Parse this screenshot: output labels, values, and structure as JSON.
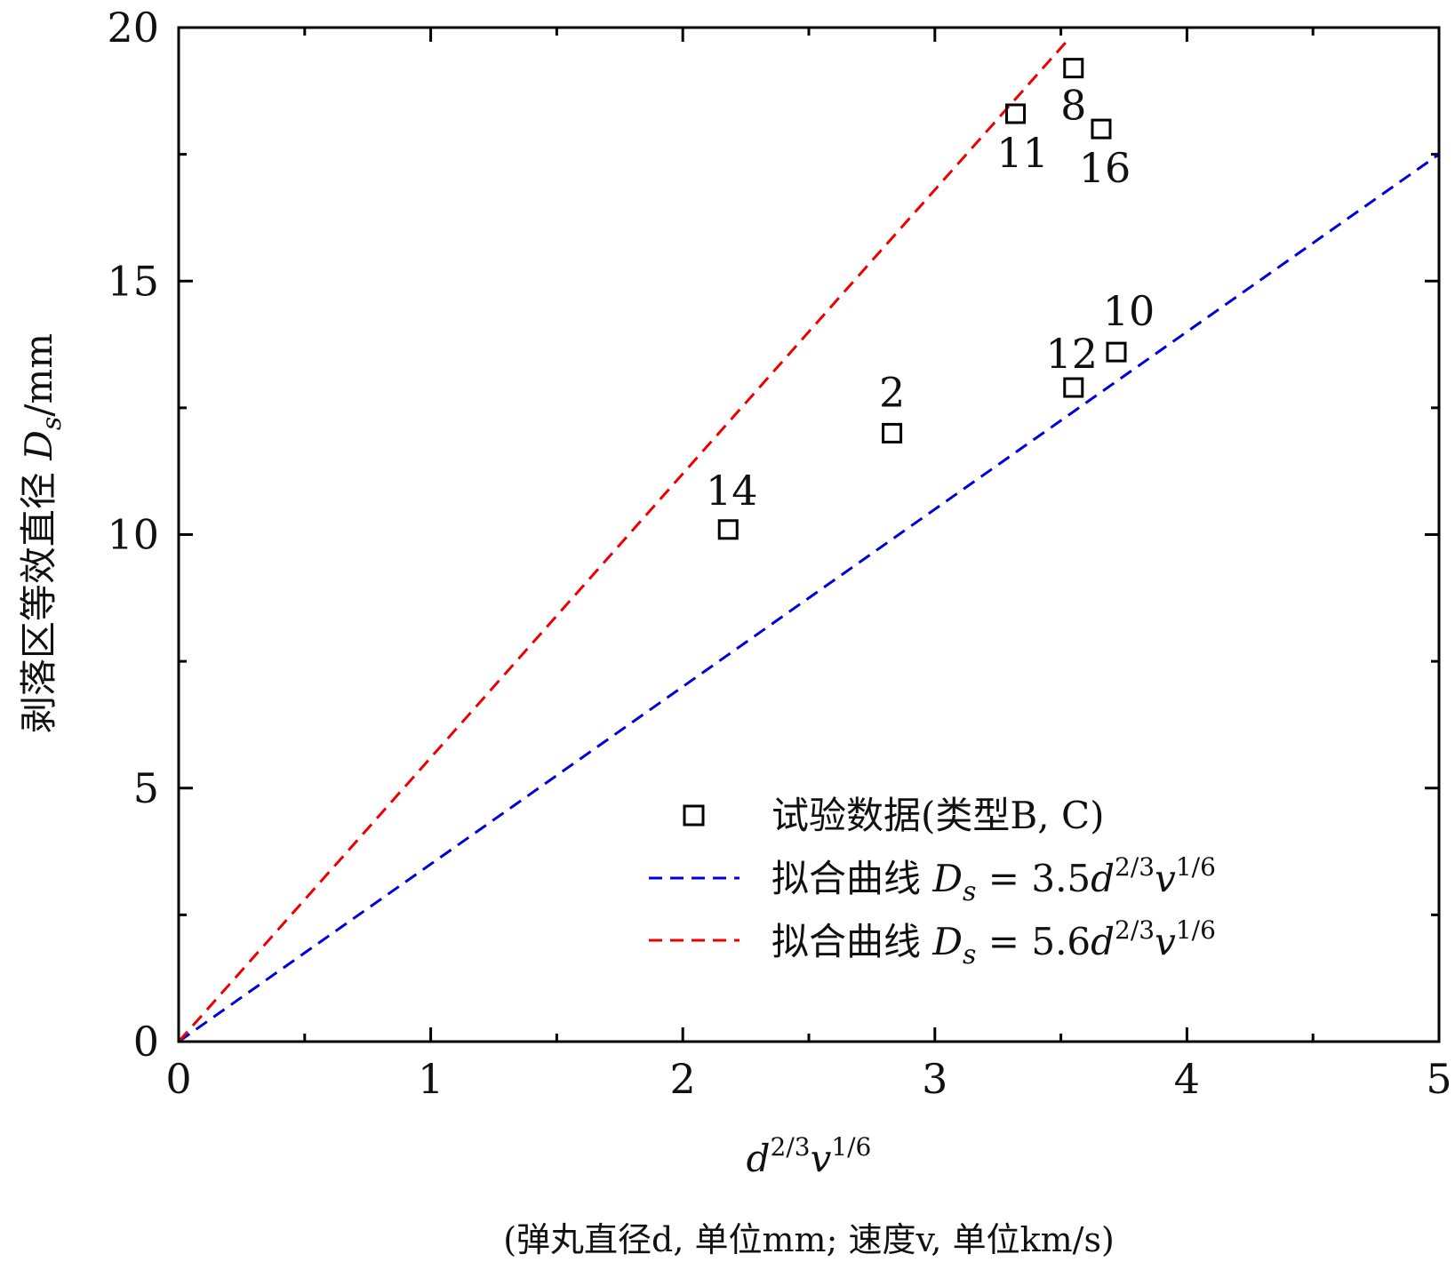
{
  "chart_data": {
    "type": "scatter",
    "xlim": [
      0,
      5
    ],
    "ylim": [
      0,
      20
    ],
    "x_ticks": [
      "0",
      "1",
      "2",
      "3",
      "4",
      "5"
    ],
    "y_ticks": [
      "0",
      "5",
      "10",
      "15",
      "20"
    ],
    "x_ticks_values": [
      0,
      1,
      2,
      3,
      4,
      5
    ],
    "y_ticks_values": [
      0,
      5,
      10,
      15,
      20
    ],
    "x_minor_ticks": [
      0.5,
      1.5,
      2.5,
      3.5,
      4.5
    ],
    "y_minor_ticks": [
      2.5,
      7.5,
      12.5,
      17.5
    ],
    "xlabel": "d^{2/3}v^{1/6}",
    "xlabel_base1": "d",
    "xlabel_sup1": "2/3",
    "xlabel_base2": "v",
    "xlabel_sup2": "1/6",
    "xlabel_note": "(弹丸直径d, 单位mm; 速度v, 单位km/s)",
    "ylabel": "剥落区等效直径 D_s/mm",
    "ylabel_text": "剥落区等效直径 ",
    "ylabel_var": "D",
    "ylabel_sub": "s",
    "ylabel_unit": "/mm",
    "grid": false,
    "legend_position": "bottom-right",
    "series": [
      {
        "name": "试验数据(类型B, C)",
        "kind": "scatter",
        "marker": "square",
        "color": "#000000",
        "points": [
          {
            "x": 2.18,
            "y": 10.1,
            "label": "14"
          },
          {
            "x": 2.83,
            "y": 12.0,
            "label": "2"
          },
          {
            "x": 3.32,
            "y": 18.3,
            "label": "11"
          },
          {
            "x": 3.55,
            "y": 19.2,
            "label": "8"
          },
          {
            "x": 3.66,
            "y": 18.0,
            "label": "16"
          },
          {
            "x": 3.55,
            "y": 12.9,
            "label": "12"
          },
          {
            "x": 3.72,
            "y": 13.6,
            "label": "10"
          }
        ]
      },
      {
        "name": "拟合曲线 D_s = 3.5d^{2/3}v^{1/6}",
        "kind": "line",
        "style": "dashed",
        "color": "#0000dd",
        "slope": 3.5,
        "x_range": [
          0,
          5
        ],
        "legend_prefix": "拟合曲线 ",
        "legend_var": "D",
        "legend_sub": "s",
        "legend_eq": " = 3.5",
        "legend_base1": "d",
        "legend_sup1": "2/3",
        "legend_base2": "v",
        "legend_sup2": "1/6"
      },
      {
        "name": "拟合曲线 D_s = 5.6d^{2/3}v^{1/6}",
        "kind": "line",
        "style": "dashed",
        "color": "#ee0000",
        "slope": 5.6,
        "x_range": [
          0,
          3.52
        ],
        "legend_prefix": "拟合曲线 ",
        "legend_var": "D",
        "legend_sub": "s",
        "legend_eq": " = 5.6",
        "legend_base1": "d",
        "legend_sup1": "2/3",
        "legend_base2": "v",
        "legend_sup2": "1/6"
      }
    ]
  }
}
